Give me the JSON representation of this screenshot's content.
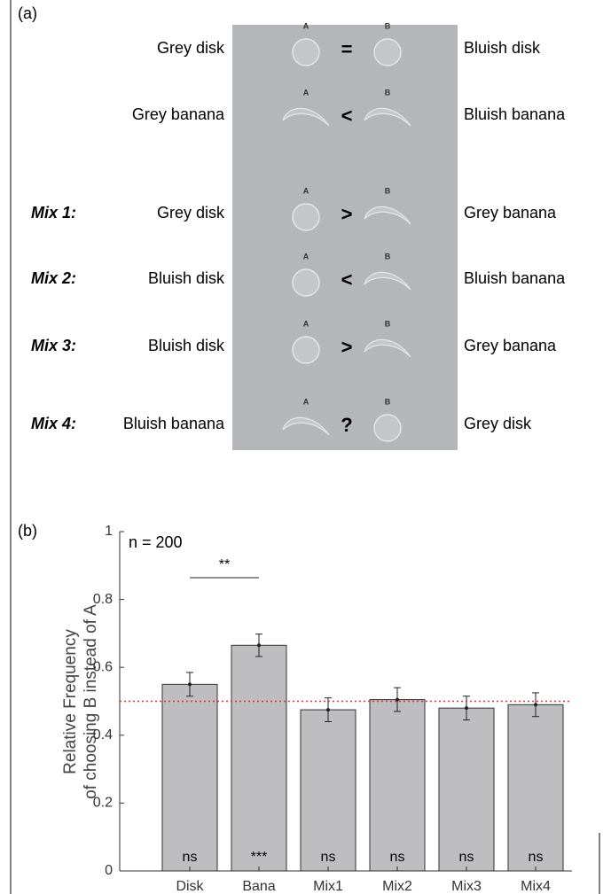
{
  "panel_a": {
    "label": "(a)",
    "option_labels": [
      "A",
      "B"
    ],
    "rows": [
      {
        "prefix": null,
        "left": "Grey disk",
        "relation": "=",
        "right": "Bluish disk"
      },
      {
        "prefix": null,
        "left": "Grey banana",
        "relation": "<",
        "right": "Bluish banana"
      },
      {
        "prefix": "Mix 1:",
        "left": "Grey disk",
        "relation": ">",
        "right": "Grey banana"
      },
      {
        "prefix": "Mix 2:",
        "left": "Bluish disk",
        "relation": "<",
        "right": "Bluish banana"
      },
      {
        "prefix": "Mix 3:",
        "left": "Bluish disk",
        "relation": ">",
        "right": "Grey banana"
      },
      {
        "prefix": "Mix 4:",
        "left": "Bluish banana",
        "relation": "?",
        "right": "Grey disk"
      }
    ]
  },
  "chart_data": {
    "type": "bar",
    "panel_label": "(b)",
    "ylabel": [
      "Relative Frequency",
      "of choosing B instead of A"
    ],
    "annotation": "n = 200",
    "categories": [
      "Disk",
      "Bana",
      "Mix1",
      "Mix2",
      "Mix3",
      "Mix4"
    ],
    "values": [
      0.55,
      0.665,
      0.475,
      0.505,
      0.48,
      0.49
    ],
    "errors": [
      0.035,
      0.033,
      0.035,
      0.035,
      0.035,
      0.035
    ],
    "significance": [
      "ns",
      "***",
      "ns",
      "ns",
      "ns",
      "ns"
    ],
    "comparison": "**",
    "reference_line": 0.5,
    "reference_color": "#e03030",
    "color": "#bebec0",
    "ylim": [
      0,
      1
    ],
    "yticks": [
      0,
      0.2,
      0.4,
      0.6,
      0.8,
      1
    ]
  }
}
